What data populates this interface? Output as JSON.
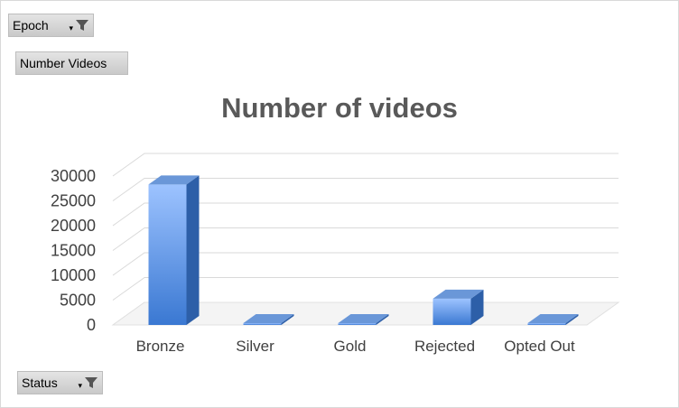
{
  "filters": {
    "epoch_label": "Epoch",
    "status_label": "Status",
    "measure_label": "Number Videos",
    "filter_icon": "funnel-icon",
    "dropdown_icon": "dropdown-caret-icon"
  },
  "chart_data": {
    "type": "bar",
    "title": "Number of videos",
    "categories": [
      "Bronze",
      "Silver",
      "Gold",
      "Rejected",
      "Opted Out"
    ],
    "values": [
      28300,
      100,
      200,
      5300,
      20
    ],
    "ylim": [
      0,
      30000
    ],
    "yticks": [
      "0",
      "5000",
      "10000",
      "15000",
      "20000",
      "25000",
      "30000"
    ],
    "grid": true,
    "style": "3d-column",
    "colors": {
      "bar_top": "#9dc3ff",
      "bar_bottom": "#3a78d2",
      "bar_side": "#2d5fa8",
      "bar_cap": "#6a97d8"
    }
  }
}
